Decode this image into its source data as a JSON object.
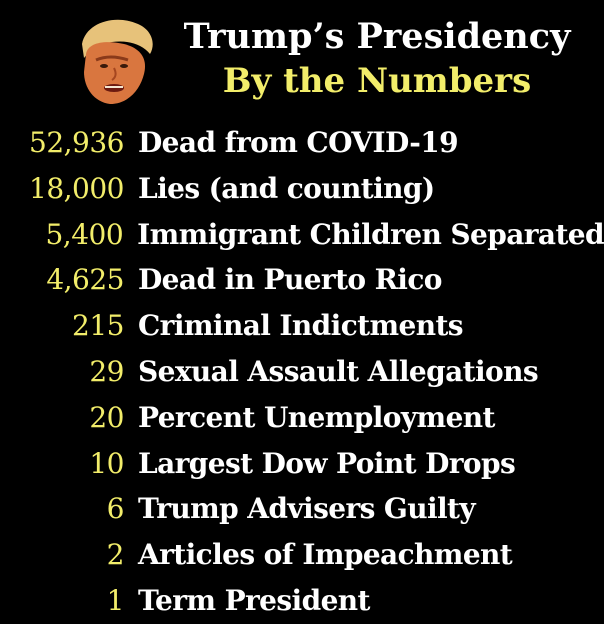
{
  "header": {
    "title_line_1": "Trump’s Presidency",
    "title_line_2": "By the Numbers"
  },
  "portrait": {
    "description_icon": "caricature-face-icon"
  },
  "stats": [
    {
      "number": "52,936",
      "label": "Dead from COVID-19"
    },
    {
      "number": "18,000",
      "label": "Lies (and counting)"
    },
    {
      "number": "5,400",
      "label": "Immigrant Children Separated"
    },
    {
      "number": "4,625",
      "label": "Dead in Puerto Rico"
    },
    {
      "number": "215",
      "label": "Criminal Indictments"
    },
    {
      "number": "29",
      "label": "Sexual Assault Allegations"
    },
    {
      "number": "20",
      "label": "Percent Unemployment"
    },
    {
      "number": "10",
      "label": "Largest Dow Point Drops"
    },
    {
      "number": "6",
      "label": "Trump Advisers Guilty"
    },
    {
      "number": "2",
      "label": "Articles of Impeachment"
    },
    {
      "number": "1",
      "label": "Term President"
    }
  ],
  "colors": {
    "background": "#000000",
    "accent": "#f2ed6a",
    "text": "#ffffff"
  }
}
